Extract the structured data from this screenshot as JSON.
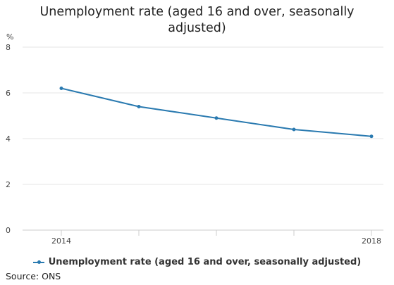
{
  "chart_data": {
    "type": "line",
    "title": "Unemployment rate (aged 16 and over, seasonally adjusted)",
    "ylabel": "%",
    "xlabel": "",
    "ylim": [
      0,
      8
    ],
    "yticks": [
      0,
      2,
      4,
      6,
      8
    ],
    "x": [
      2014,
      2015,
      2016,
      2017,
      2018
    ],
    "xtick_labels": [
      "2014",
      "",
      "",
      "",
      "2018"
    ],
    "series": [
      {
        "name": "Unemployment rate (aged 16 and over, seasonally adjusted)",
        "values": [
          6.2,
          5.4,
          4.9,
          4.4,
          4.1
        ],
        "color": "#2a7ab0"
      }
    ],
    "grid": true,
    "legend_position": "bottom"
  },
  "source": "Source: ONS",
  "colors": {
    "line": "#2a7ab0",
    "grid": "#e6e6e6",
    "axis": "#cccccc"
  }
}
